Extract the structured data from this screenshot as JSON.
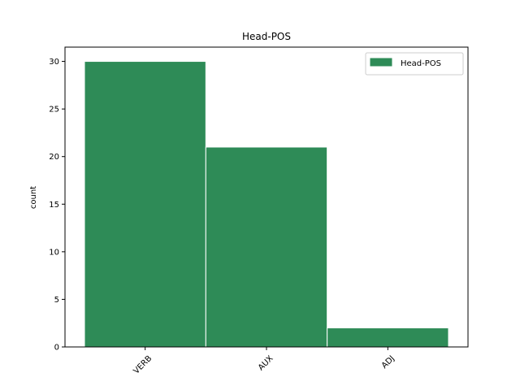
{
  "chart_data": {
    "type": "bar",
    "title": "Head-POS",
    "xlabel": "",
    "ylabel": "count",
    "categories": [
      "VERB",
      "AUX",
      "ADJ"
    ],
    "series": [
      {
        "name": "Head-POS",
        "values": [
          30,
          21,
          2
        ]
      }
    ],
    "ylim": [
      0,
      31.5
    ],
    "yticks": [
      0,
      5,
      10,
      15,
      20,
      25,
      30
    ],
    "grid": false,
    "legend": "upper right",
    "xtick_rotation": 45,
    "colors": {
      "bar_fill": "#2e8b57",
      "bar_edge": "#ffffff"
    }
  }
}
